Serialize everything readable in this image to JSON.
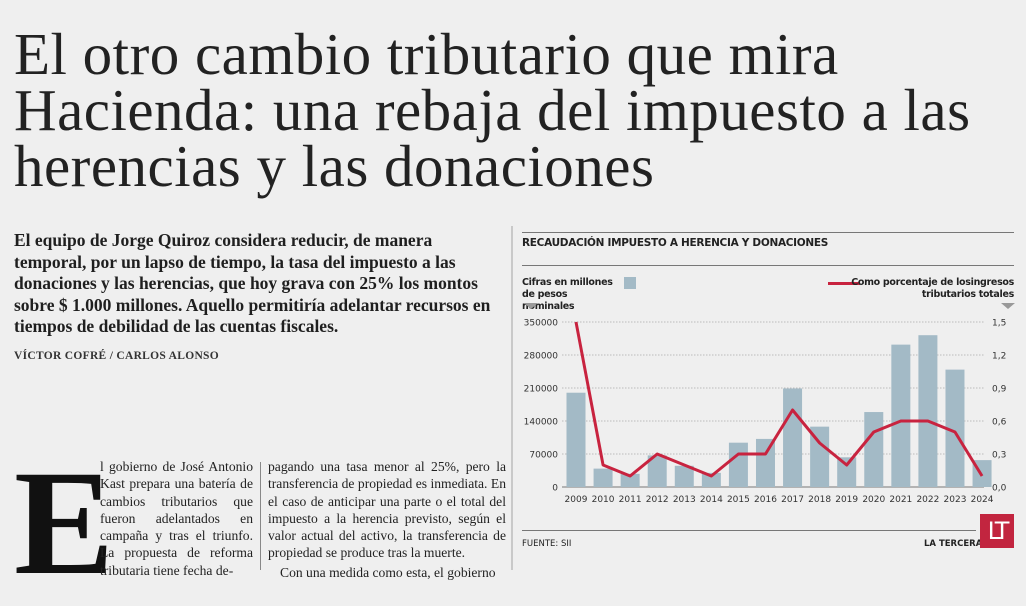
{
  "headline": "El otro cambio tributario que mira Hacienda: una rebaja del impuesto a las herencias y las donaciones",
  "deck": "El equipo de Jorge Quiroz considera reducir, de manera temporal, por un lapso de tiempo, la tasa del impuesto a las donaciones y las herencias, que hoy grava con 25% los montos sobre $ 1.000 millones. Aquello permitiría adelantar recursos en tiempos de debilidad de las cuentas fiscales.",
  "byline": "VÍCTOR COFRÉ / CARLOS ALONSO",
  "body": {
    "dropcap": "E",
    "col1": "l gobierno de José Antonio Kast prepara una batería de cambios tributarios que fueron adelantados en campaña y tras el triunfo. La propuesta de reforma tributaria tiene fecha de-",
    "col2_p1": "pagando una tasa menor al 25%, pero la transferencia de propiedad es inmediata. En el caso de anticipar una parte o el total del impuesto a la herencia previsto, según el valor actual del activo, la transferencia de propiedad se produce tras la muerte.",
    "col2_p2": "Con una medida como esta, el gobierno"
  },
  "chart_data": {
    "type": "bar+line",
    "title": "RECAUDACIÓN IMPUESTO A HERENCIA Y DONACIONES",
    "categories": [
      "2009",
      "2010",
      "2011",
      "2012",
      "2013",
      "2014",
      "2015",
      "2016",
      "2017",
      "2018",
      "2019",
      "2020",
      "2021",
      "2022",
      "2023",
      "2024"
    ],
    "series": [
      {
        "name": "Cifras en millones de pesos nominales",
        "type": "bar",
        "axis": "left",
        "color": "#a3bac6",
        "values": [
          200000,
          39000,
          28000,
          67000,
          45000,
          30000,
          94000,
          102000,
          209000,
          128000,
          63000,
          159000,
          302000,
          322000,
          249000,
          57000
        ]
      },
      {
        "name": "Como porcentaje de losingresos tributarios totales",
        "type": "line",
        "axis": "right",
        "color": "#c8233f",
        "values": [
          1.5,
          0.2,
          0.1,
          0.3,
          0.2,
          0.1,
          0.3,
          0.3,
          0.7,
          0.4,
          0.2,
          0.5,
          0.6,
          0.6,
          0.5,
          0.1
        ]
      }
    ],
    "left_axis": {
      "ylim": [
        0,
        350000
      ],
      "ticks": [
        "0",
        "70000",
        "140000",
        "210000",
        "280000",
        "350000"
      ]
    },
    "right_axis": {
      "ylim": [
        0,
        1.5
      ],
      "ticks": [
        "0,0",
        "0,3",
        "0,6",
        "0,9",
        "1,2",
        "1,5"
      ]
    },
    "legend_left": "Cifras en millones de pesos nominales",
    "legend_right": "Como porcentaje de losingresos tributarios totales",
    "grid": true,
    "source": "FUENTE: SII",
    "brand": "LA TERCERA",
    "logo": "LT"
  }
}
